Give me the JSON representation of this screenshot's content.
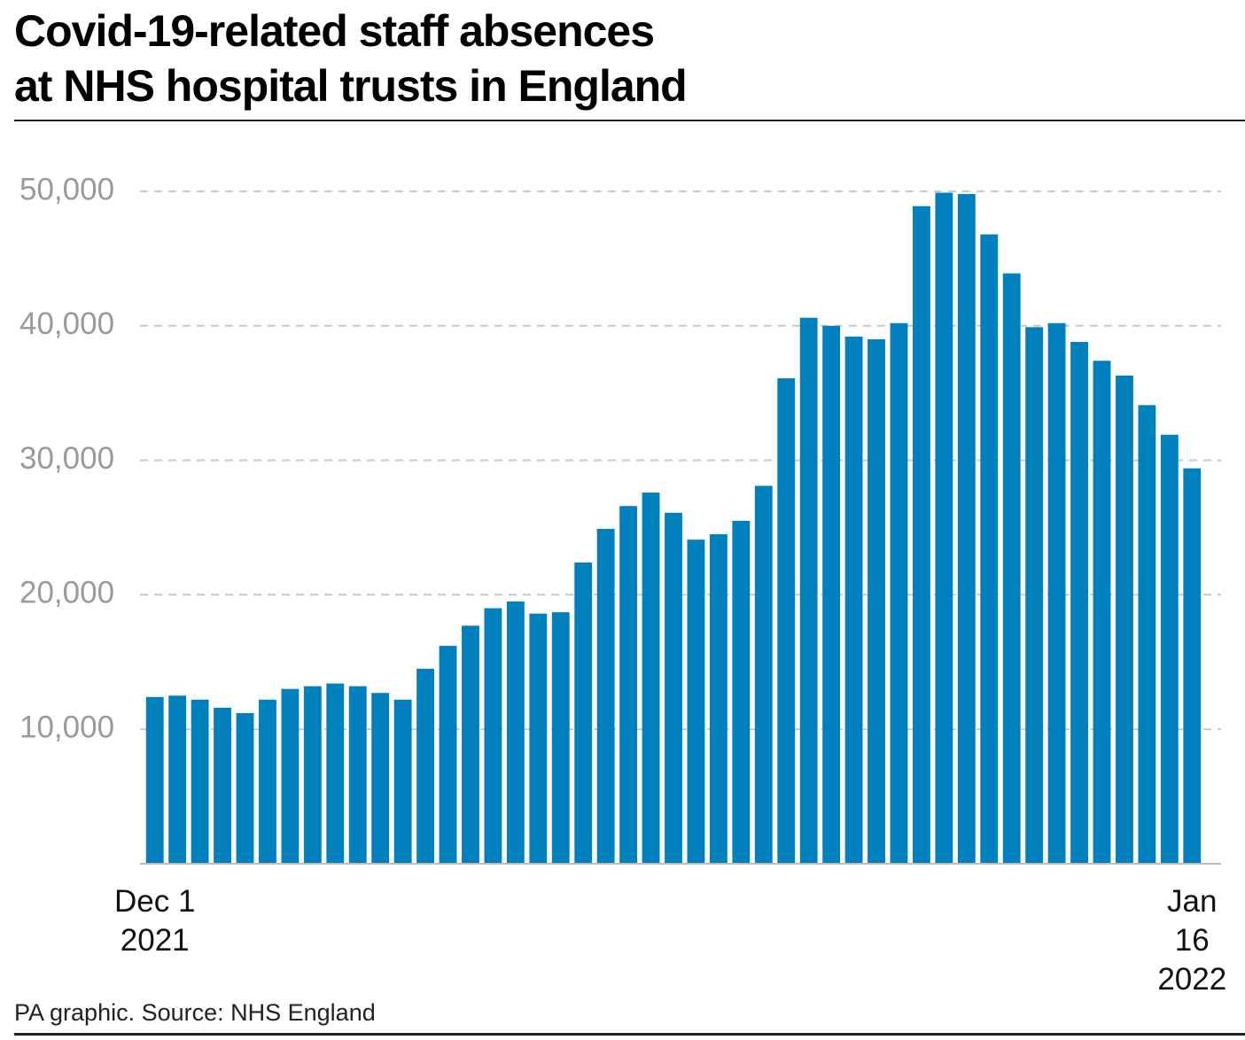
{
  "chart_data": {
    "type": "bar",
    "title": "Covid-19-related staff absences\nat NHS hospital trusts in England",
    "source": "PA graphic. Source: NHS England",
    "categories": [
      "Dec 1\n2021",
      null,
      null,
      null,
      null,
      null,
      null,
      null,
      null,
      null,
      null,
      null,
      null,
      null,
      null,
      null,
      null,
      null,
      null,
      null,
      null,
      null,
      null,
      null,
      null,
      null,
      null,
      null,
      null,
      null,
      null,
      null,
      null,
      null,
      null,
      null,
      null,
      null,
      null,
      null,
      null,
      null,
      null,
      null,
      null,
      null,
      "Jan 16\n2022"
    ],
    "values": [
      12400,
      12500,
      12200,
      11600,
      11200,
      12200,
      13000,
      13200,
      13400,
      13200,
      12700,
      12200,
      14500,
      16200,
      17700,
      19000,
      19500,
      18600,
      18700,
      22400,
      24900,
      26600,
      27600,
      26100,
      24100,
      24500,
      25500,
      28100,
      36100,
      40600,
      40000,
      39200,
      39000,
      40200,
      48900,
      49900,
      49800,
      46800,
      43900,
      39900,
      40200,
      38800,
      37400,
      36300,
      34100,
      31900,
      29400
    ],
    "color": "#0081bd",
    "ylim": [
      0,
      50000
    ],
    "yticks": [
      {
        "value": 10000,
        "label": "10,000"
      },
      {
        "value": 20000,
        "label": "20,000"
      },
      {
        "value": 30000,
        "label": "30,000"
      },
      {
        "value": 40000,
        "label": "40,000"
      },
      {
        "value": 50000,
        "label": "50,000"
      }
    ],
    "grid": true
  }
}
